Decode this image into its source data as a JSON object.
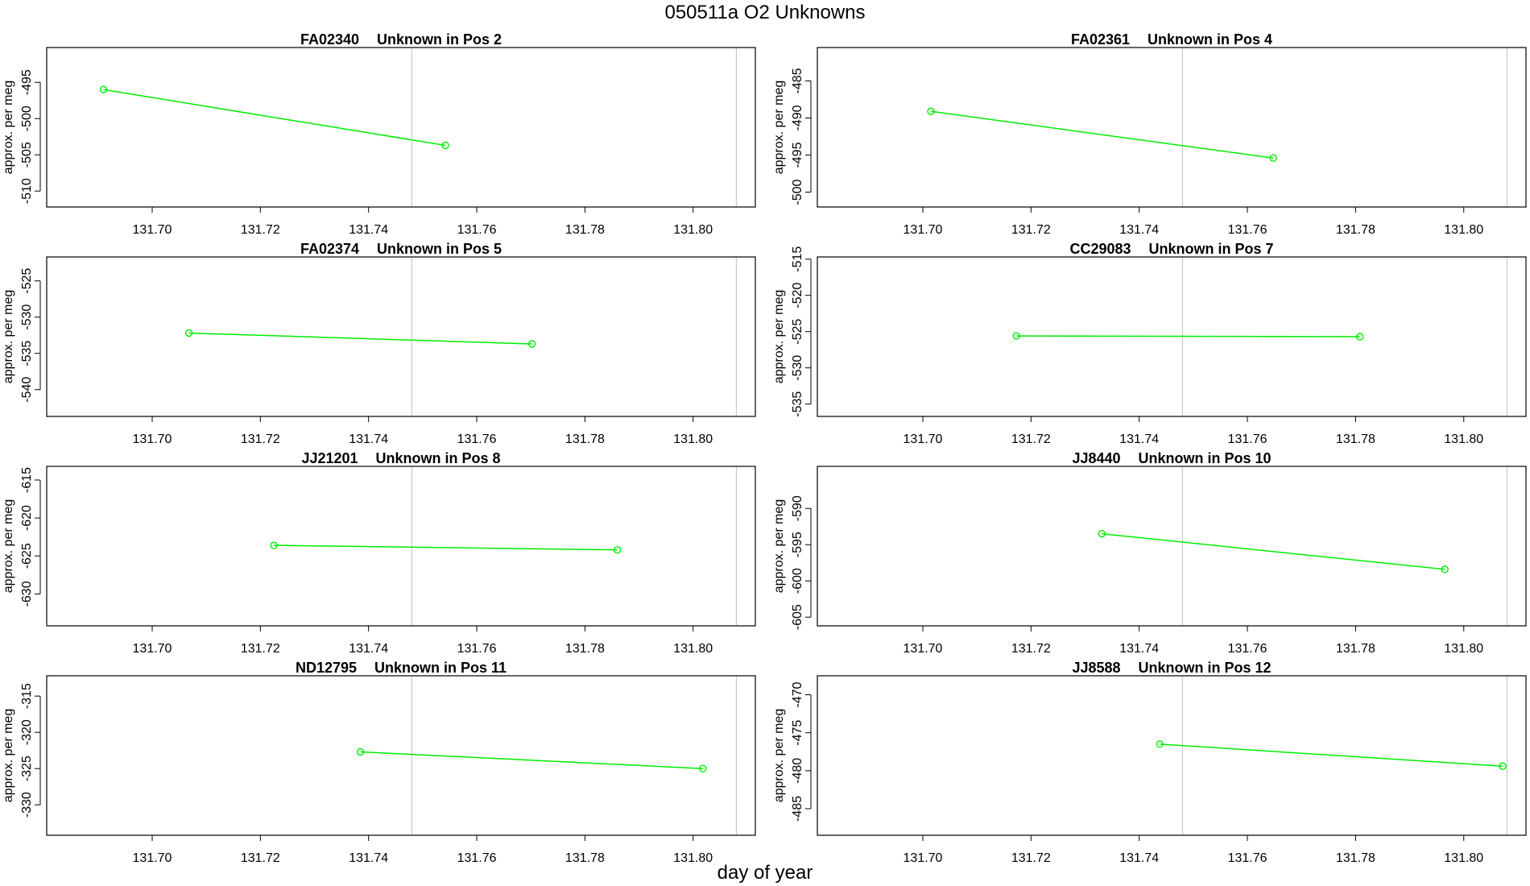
{
  "figure": {
    "title": "050511a  O2 Unknowns",
    "xlabel": "day of year"
  },
  "style": {
    "series_color": "#00ee00",
    "refline_color": "#cccccc",
    "axis_color": "#000000"
  },
  "chart_data": [
    {
      "type": "line",
      "title_id": "FA02340",
      "title_pos": "Unknown in Pos 2",
      "ylabel": "approx. per meg",
      "xlim": [
        131.6805,
        131.8115
      ],
      "xticks": [
        131.7,
        131.72,
        131.74,
        131.76,
        131.78,
        131.8
      ],
      "ylim": [
        -512.2,
        -490.2
      ],
      "yticks": [
        -510,
        -505,
        -500,
        -495
      ],
      "ref_lines": [
        131.748,
        131.808
      ],
      "x": [
        131.691,
        131.7542
      ],
      "y": [
        -496.0,
        -503.7
      ]
    },
    {
      "type": "line",
      "title_id": "FA02361",
      "title_pos": "Unknown in Pos 4",
      "ylabel": "approx. per meg",
      "xlim": [
        131.6805,
        131.8115
      ],
      "xticks": [
        131.7,
        131.72,
        131.74,
        131.76,
        131.78,
        131.8
      ],
      "ylim": [
        -502.0,
        -480.5
      ],
      "yticks": [
        -500,
        -495,
        -490,
        -485
      ],
      "ref_lines": [
        131.748,
        131.808
      ],
      "x": [
        131.7015,
        131.7648
      ],
      "y": [
        -489.1,
        -495.4
      ]
    },
    {
      "type": "line",
      "title_id": "FA02374",
      "title_pos": "Unknown in Pos 5",
      "ylabel": "approx. per meg",
      "xlim": [
        131.6805,
        131.8115
      ],
      "xticks": [
        131.7,
        131.72,
        131.74,
        131.76,
        131.78,
        131.8
      ],
      "ylim": [
        -543.7,
        -521.7
      ],
      "yticks": [
        -540,
        -535,
        -530,
        -525
      ],
      "ref_lines": [
        131.748,
        131.808
      ],
      "x": [
        131.7068,
        131.7702
      ],
      "y": [
        -532.2,
        -533.7
      ]
    },
    {
      "type": "line",
      "title_id": "CC29083",
      "title_pos": "Unknown in Pos 7",
      "ylabel": "approx. per meg",
      "xlim": [
        131.6805,
        131.8115
      ],
      "xticks": [
        131.7,
        131.72,
        131.74,
        131.76,
        131.78,
        131.8
      ],
      "ylim": [
        -536.7,
        -514.7
      ],
      "yticks": [
        -535,
        -530,
        -525,
        -520,
        -515
      ],
      "ref_lines": [
        131.748,
        131.808
      ],
      "x": [
        131.7173,
        131.7808
      ],
      "y": [
        -525.6,
        -525.7
      ]
    },
    {
      "type": "line",
      "title_id": "JJ21201",
      "title_pos": "Unknown in Pos 8",
      "ylabel": "approx. per meg",
      "xlim": [
        131.6805,
        131.8115
      ],
      "xticks": [
        131.7,
        131.72,
        131.74,
        131.76,
        131.78,
        131.8
      ],
      "ylim": [
        -634.2,
        -613.2
      ],
      "yticks": [
        -630,
        -625,
        -620,
        -615
      ],
      "ref_lines": [
        131.748,
        131.808
      ],
      "x": [
        131.7225,
        131.786
      ],
      "y": [
        -623.6,
        -624.2
      ]
    },
    {
      "type": "line",
      "title_id": "JJ8440",
      "title_pos": "Unknown in Pos 10",
      "ylabel": "approx. per meg",
      "xlim": [
        131.6805,
        131.8115
      ],
      "xticks": [
        131.7,
        131.72,
        131.74,
        131.76,
        131.78,
        131.8
      ],
      "ylim": [
        -606.2,
        -584.2
      ],
      "yticks": [
        -605,
        -600,
        -595,
        -590
      ],
      "ref_lines": [
        131.748,
        131.808
      ],
      "x": [
        131.7331,
        131.7965
      ],
      "y": [
        -593.5,
        -598.4
      ]
    },
    {
      "type": "line",
      "title_id": "ND12795",
      "title_pos": "Unknown in Pos 11",
      "ylabel": "approx. per meg",
      "xlim": [
        131.6805,
        131.8115
      ],
      "xticks": [
        131.7,
        131.72,
        131.74,
        131.76,
        131.78,
        131.8
      ],
      "ylim": [
        -334.2,
        -312.2
      ],
      "yticks": [
        -330,
        -325,
        -320,
        -315
      ],
      "ref_lines": [
        131.748,
        131.808
      ],
      "x": [
        131.7385,
        131.8018
      ],
      "y": [
        -322.7,
        -325.0
      ]
    },
    {
      "type": "line",
      "title_id": "JJ8588",
      "title_pos": "Unknown in Pos 12",
      "ylabel": "approx. per meg",
      "xlim": [
        131.6805,
        131.8115
      ],
      "xticks": [
        131.7,
        131.72,
        131.74,
        131.76,
        131.78,
        131.8
      ],
      "ylim": [
        -488.5,
        -467.5
      ],
      "yticks": [
        -485,
        -480,
        -475,
        -470
      ],
      "ref_lines": [
        131.748,
        131.808
      ],
      "x": [
        131.7438,
        131.8072
      ],
      "y": [
        -476.5,
        -479.4
      ]
    }
  ]
}
